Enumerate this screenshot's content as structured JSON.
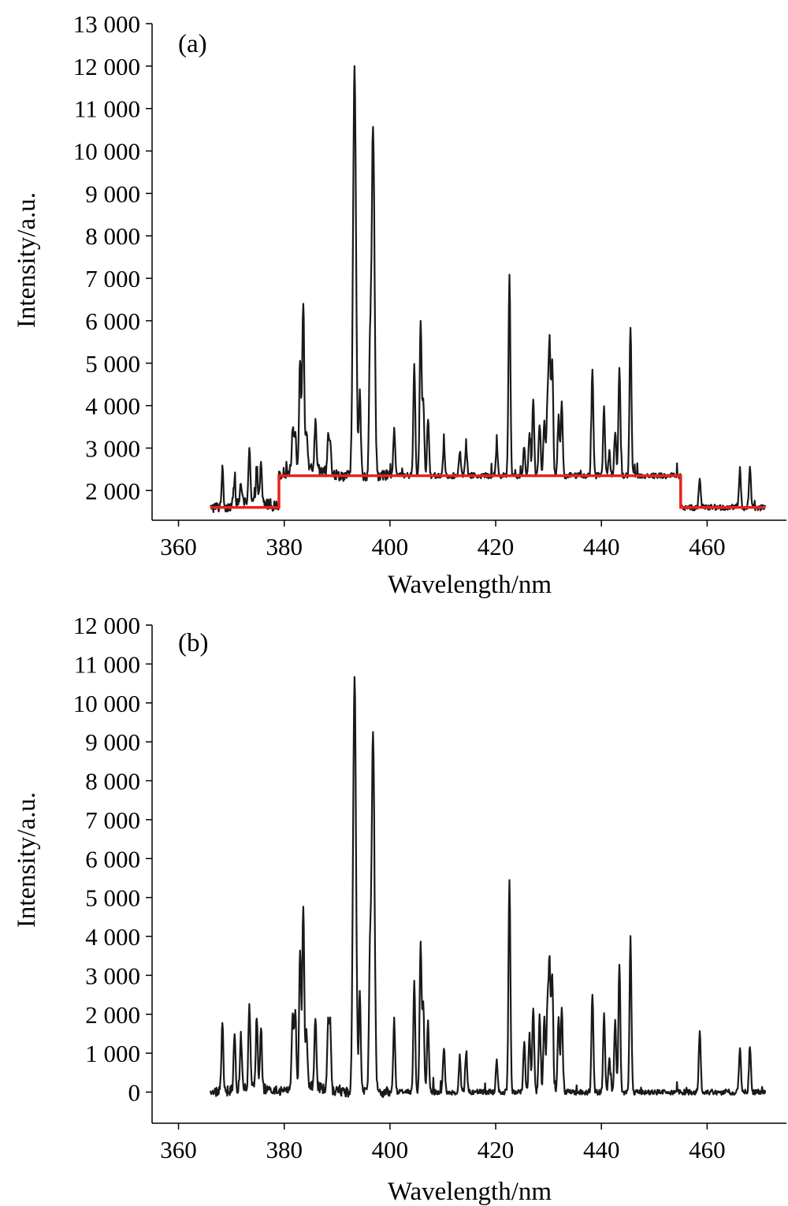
{
  "colors": {
    "spectrum": "#1a1a1a",
    "baseline": "#e8231b",
    "axis": "#000000"
  },
  "chart_data": [
    {
      "type": "line",
      "panel_label": "(a)",
      "xlabel": "Wavelength/nm",
      "ylabel": "Intensity/a.u.",
      "xlim": [
        355,
        475
      ],
      "ylim": [
        1300,
        13000
      ],
      "x_ticks": [
        360,
        380,
        400,
        420,
        440,
        460
      ],
      "x_tick_labels": [
        "360",
        "380",
        "400",
        "420",
        "440",
        "460"
      ],
      "y_ticks": [
        2000,
        3000,
        4000,
        5000,
        6000,
        7000,
        8000,
        9000,
        10000,
        11000,
        12000,
        13000
      ],
      "y_tick_labels": [
        "2 000",
        "3 000",
        "4 000",
        "5 000",
        "6 000",
        "7 000",
        "8 000",
        "9 000",
        "10 000",
        "11 000",
        "12 000",
        "13 000"
      ],
      "x_range": [
        366,
        471
      ],
      "baseline_segments": [
        {
          "x": [
            366,
            379
          ],
          "y": 1600
        },
        {
          "x": [
            379,
            455
          ],
          "y": 2350
        },
        {
          "x": [
            455,
            471
          ],
          "y": 1600
        }
      ],
      "series": [
        {
          "peaks": [
            [
              368.3,
              2450
            ],
            [
              370.6,
              2200
            ],
            [
              371.8,
              2100
            ],
            [
              373.4,
              2950
            ],
            [
              374.8,
              2450
            ],
            [
              375.6,
              2500
            ],
            [
              381.6,
              3400
            ],
            [
              382.1,
              3250
            ],
            [
              383.0,
              5000
            ],
            [
              383.6,
              6300
            ],
            [
              384.2,
              3200
            ],
            [
              385.9,
              3450
            ],
            [
              388.3,
              3150
            ],
            [
              388.7,
              3150
            ],
            [
              393.3,
              12000
            ],
            [
              394.3,
              4300
            ],
            [
              396.2,
              4800
            ],
            [
              396.8,
              10600
            ],
            [
              400.8,
              3450
            ],
            [
              404.6,
              4950
            ],
            [
              405.8,
              6000
            ],
            [
              406.3,
              4100
            ],
            [
              407.2,
              3700
            ],
            [
              410.2,
              3050
            ],
            [
              413.2,
              2950
            ],
            [
              414.4,
              3000
            ],
            [
              420.2,
              3050
            ],
            [
              422.6,
              7050
            ],
            [
              425.4,
              3050
            ],
            [
              426.4,
              3300
            ],
            [
              427.1,
              4150
            ],
            [
              428.3,
              3550
            ],
            [
              429.2,
              3600
            ],
            [
              429.8,
              4100
            ],
            [
              430.2,
              5450
            ],
            [
              430.7,
              5050
            ],
            [
              431.9,
              3750
            ],
            [
              432.5,
              4050
            ],
            [
              438.3,
              4850
            ],
            [
              440.5,
              3950
            ],
            [
              441.5,
              2900
            ],
            [
              442.6,
              3400
            ],
            [
              443.4,
              4900
            ],
            [
              445.5,
              5900
            ],
            [
              458.6,
              2300
            ],
            [
              466.2,
              2500
            ],
            [
              468.1,
              2550
            ]
          ]
        }
      ]
    },
    {
      "type": "line",
      "panel_label": "(b)",
      "xlabel": "Wavelength/nm",
      "ylabel": "Intensity/a.u.",
      "xlim": [
        355,
        475
      ],
      "ylim": [
        -800,
        12000
      ],
      "x_ticks": [
        360,
        380,
        400,
        420,
        440,
        460
      ],
      "x_tick_labels": [
        "360",
        "380",
        "400",
        "420",
        "440",
        "460"
      ],
      "y_ticks": [
        0,
        1000,
        2000,
        3000,
        4000,
        5000,
        6000,
        7000,
        8000,
        9000,
        10000,
        11000,
        12000
      ],
      "y_tick_labels": [
        "0",
        "1 000",
        "2 000",
        "3 000",
        "4 000",
        "5 000",
        "6 000",
        "7 000",
        "8 000",
        "9 000",
        "10 000",
        "11 000",
        "12 000"
      ],
      "x_range": [
        366,
        471
      ],
      "series": [
        {
          "peaks": [
            [
              368.3,
              1750
            ],
            [
              370.6,
              1500
            ],
            [
              371.8,
              1350
            ],
            [
              373.4,
              2150
            ],
            [
              374.8,
              1850
            ],
            [
              375.6,
              1650
            ],
            [
              381.6,
              1900
            ],
            [
              382.1,
              1800
            ],
            [
              383.0,
              3550
            ],
            [
              383.6,
              4600
            ],
            [
              384.2,
              1300
            ],
            [
              385.9,
              1800
            ],
            [
              388.3,
              1650
            ],
            [
              388.7,
              1650
            ],
            [
              393.3,
              10700
            ],
            [
              394.3,
              2500
            ],
            [
              396.2,
              3100
            ],
            [
              396.8,
              9200
            ],
            [
              400.8,
              1850
            ],
            [
              404.6,
              2850
            ],
            [
              405.8,
              3800
            ],
            [
              406.3,
              2300
            ],
            [
              407.2,
              1850
            ],
            [
              410.2,
              1150
            ],
            [
              413.2,
              900
            ],
            [
              414.4,
              1000
            ],
            [
              420.2,
              800
            ],
            [
              422.6,
              5500
            ],
            [
              425.4,
              1300
            ],
            [
              426.4,
              1500
            ],
            [
              427.1,
              2200
            ],
            [
              428.3,
              1950
            ],
            [
              429.2,
              1900
            ],
            [
              429.8,
              2200
            ],
            [
              430.2,
              3250
            ],
            [
              430.7,
              3000
            ],
            [
              431.9,
              1900
            ],
            [
              432.5,
              2150
            ],
            [
              438.3,
              2550
            ],
            [
              440.5,
              2000
            ],
            [
              441.5,
              900
            ],
            [
              442.6,
              1800
            ],
            [
              443.4,
              3250
            ],
            [
              445.5,
              3950
            ],
            [
              458.6,
              1550
            ],
            [
              466.2,
              1150
            ],
            [
              468.1,
              1200
            ]
          ]
        }
      ]
    }
  ]
}
